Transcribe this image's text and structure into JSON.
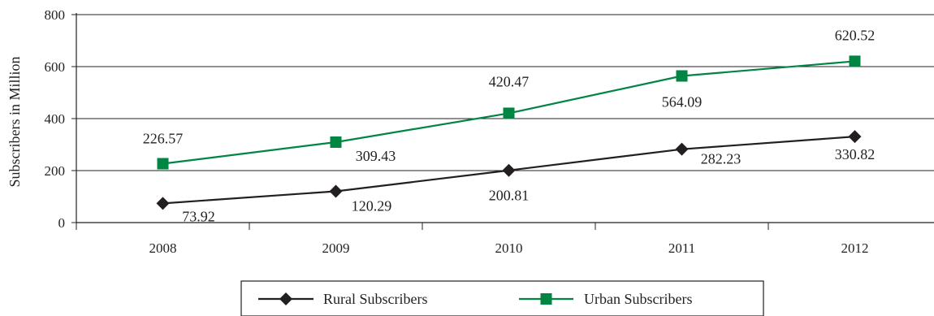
{
  "chart_data": {
    "type": "line",
    "categories": [
      "2008",
      "2009",
      "2010",
      "2011",
      "2012"
    ],
    "ylabel": "Subscribers in Million",
    "xlabel": "",
    "ylim": [
      0,
      800
    ],
    "yticks": [
      0,
      200,
      400,
      600,
      800
    ],
    "grid": "horizontal",
    "legend": "bottom-center",
    "series": [
      {
        "name": "Rural Subscribers",
        "marker": "diamond",
        "color": "#231f20",
        "values": [
          73.92,
          120.29,
          200.81,
          282.23,
          330.82
        ],
        "labels": [
          "73.92",
          "120.29",
          "200.81",
          "282.23",
          "330.82"
        ]
      },
      {
        "name": "Urban Subscribers",
        "marker": "square",
        "color": "#008542",
        "values": [
          226.57,
          309.43,
          420.47,
          564.09,
          620.52
        ],
        "labels": [
          "226.57",
          "309.43",
          "420.47",
          "564.09",
          "620.52"
        ]
      }
    ]
  }
}
